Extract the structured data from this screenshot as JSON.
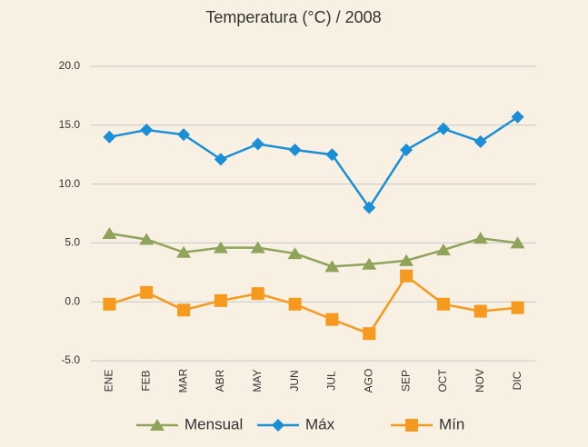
{
  "chart_data": {
    "type": "line",
    "title": "Temperatura (°C) / 2008",
    "categories": [
      "ENE",
      "FEB",
      "MAR",
      "ABR",
      "MAY",
      "JUN",
      "JUL",
      "AGO",
      "SEP",
      "OCT",
      "NOV",
      "DIC"
    ],
    "series": [
      {
        "name": "Mensual",
        "color": "#8fa35b",
        "marker": "triangle",
        "values": [
          5.8,
          5.3,
          4.2,
          4.6,
          4.6,
          4.1,
          3.0,
          3.2,
          3.5,
          4.4,
          5.4,
          5.0
        ]
      },
      {
        "name": "Máx",
        "color": "#1b8fd6",
        "marker": "diamond",
        "values": [
          14.0,
          14.6,
          14.2,
          12.1,
          13.4,
          12.9,
          12.5,
          8.0,
          12.9,
          14.7,
          13.6,
          15.7
        ]
      },
      {
        "name": "Mín",
        "color": "#f59a1f",
        "marker": "square",
        "values": [
          -0.2,
          0.8,
          -0.7,
          0.1,
          0.7,
          -0.2,
          -1.5,
          -2.7,
          2.2,
          -0.2,
          -0.8,
          -0.5
        ]
      }
    ],
    "ylim": [
      -5,
      20
    ],
    "yticks": [
      {
        "value": -5,
        "label": "-5.0"
      },
      {
        "value": 0,
        "label": "0.0"
      },
      {
        "value": 5,
        "label": "5.0"
      },
      {
        "value": 10,
        "label": "10.0"
      },
      {
        "value": 15,
        "label": "15.0"
      },
      {
        "value": 20,
        "label": "20.0"
      }
    ],
    "grid": true,
    "legend": "bottom"
  }
}
